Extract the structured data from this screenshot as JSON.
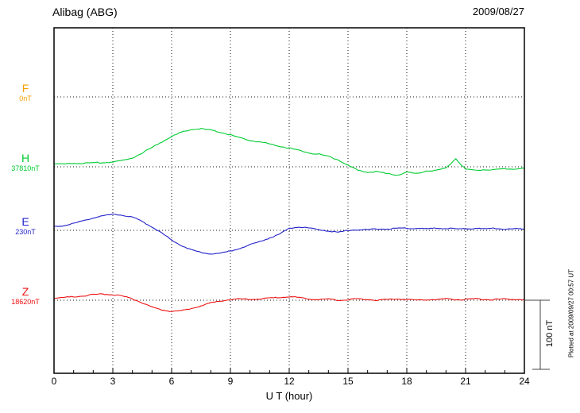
{
  "header": {
    "station": "Alibag (ABG)",
    "date": "2009/08/27"
  },
  "scale_bar": {
    "label": "100 nT"
  },
  "plot_note": "Plotted at 2009/09/27 00:57 UT",
  "chart_data": {
    "type": "line",
    "title": "Alibag (ABG) magnetogram 2009/08/27",
    "xlabel": "U T (hour)",
    "x_range": [
      0,
      24
    ],
    "x_ticks": [
      0,
      3,
      6,
      9,
      12,
      15,
      18,
      21,
      24
    ],
    "x_step_hours": 0.5,
    "grid": "dotted",
    "legend_position": "left",
    "scale_bar_nT": 100,
    "series": [
      {
        "name": "F",
        "baseline_label": "0nT",
        "baseline_value_nT": 0,
        "color": "#F5A000",
        "offsets_nT": []
      },
      {
        "name": "H",
        "baseline_label": "37810nT",
        "baseline_value_nT": 37810,
        "color": "#00CC33",
        "offsets_nT": [
          4,
          4,
          5,
          5,
          6,
          6,
          7,
          9,
          13,
          20,
          28,
          36,
          44,
          50,
          54,
          55,
          53,
          50,
          46,
          42,
          38,
          36,
          33,
          30,
          27,
          24,
          20,
          18,
          15,
          10,
          2,
          -5,
          -8,
          -7,
          -10,
          -12,
          -8,
          -10,
          -6,
          -5,
          -2,
          12,
          -4,
          -5,
          -4,
          -4,
          -3,
          -3,
          -2
        ]
      },
      {
        "name": "E",
        "baseline_label": "230nT",
        "baseline_value_nT": 230,
        "color": "#2222CC",
        "offsets_nT": [
          5,
          7,
          10,
          14,
          18,
          21,
          23,
          22,
          19,
          13,
          5,
          -4,
          -14,
          -22,
          -28,
          -32,
          -34,
          -33,
          -30,
          -26,
          -21,
          -16,
          -11,
          -6,
          3,
          5,
          3,
          1,
          -1,
          -3,
          0,
          1,
          1,
          2,
          2,
          3,
          3,
          3,
          2,
          3,
          3,
          2,
          2,
          3,
          2,
          3,
          2,
          2,
          2
        ]
      },
      {
        "name": "Z",
        "baseline_label": "18620nT",
        "baseline_value_nT": 18620,
        "color": "#EE1111",
        "offsets_nT": [
          3,
          4,
          5,
          6,
          8,
          9,
          8,
          6,
          2,
          -4,
          -10,
          -14,
          -16,
          -15,
          -12,
          -8,
          -4,
          -1,
          1,
          2,
          1,
          2,
          3,
          4,
          5,
          4,
          2,
          1,
          2,
          0,
          1,
          2,
          1,
          0,
          1,
          2,
          1,
          0,
          1,
          1,
          2,
          1,
          1,
          2,
          1,
          1,
          2,
          1,
          1
        ]
      }
    ]
  }
}
